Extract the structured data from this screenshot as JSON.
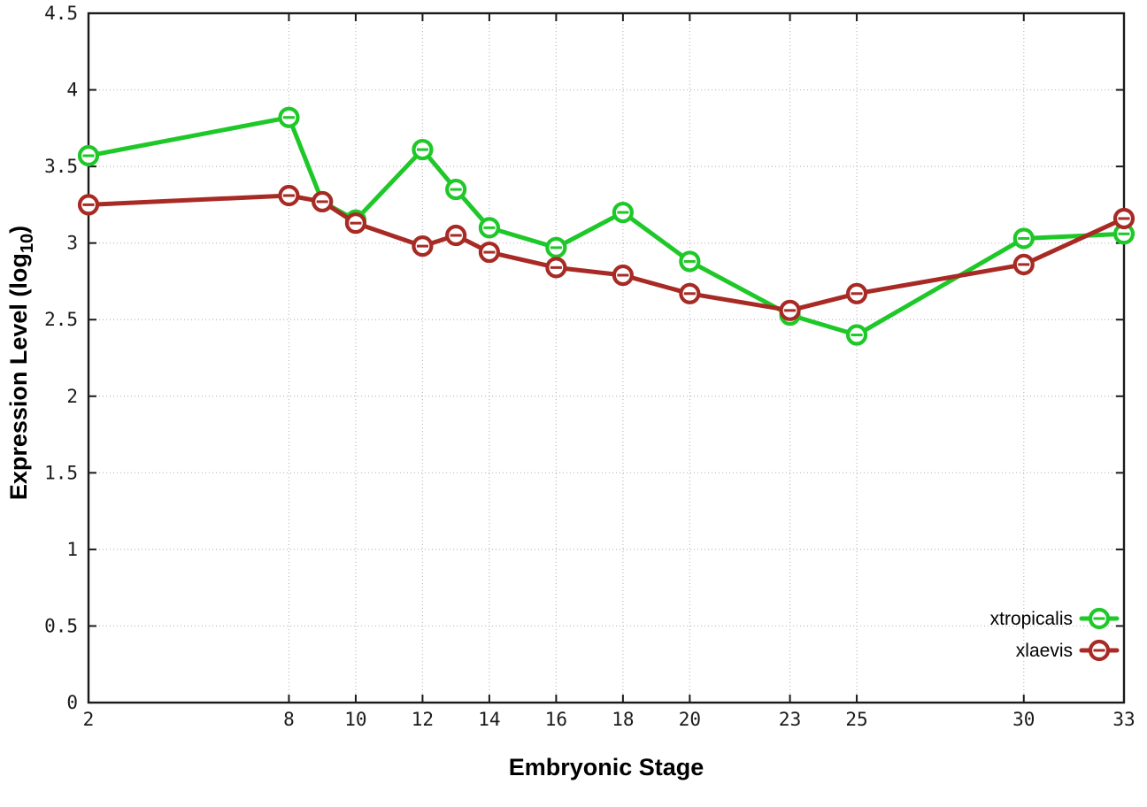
{
  "chart_data": {
    "type": "line",
    "title": "",
    "xlabel": "Embryonic Stage",
    "ylabel": {
      "text": "Expression Level (log",
      "subscript": "10",
      "suffix": ")"
    },
    "xlim": [
      2,
      33
    ],
    "ylim": [
      0,
      4.5
    ],
    "xticks": [
      2,
      8,
      10,
      12,
      14,
      16,
      18,
      20,
      23,
      25,
      30,
      33
    ],
    "xtick_labels": [
      "2",
      "8",
      "10",
      "12",
      "14",
      "16",
      "18",
      "20",
      "23",
      "25",
      "30",
      "33"
    ],
    "yticks": [
      0,
      0.5,
      1,
      1.5,
      2,
      2.5,
      3,
      3.5,
      4,
      4.5
    ],
    "ytick_labels": [
      "0",
      "0.5",
      "1",
      "1.5",
      "2",
      "2.5",
      "3",
      "3.5",
      "4",
      "4.5"
    ],
    "grid": true,
    "legend_position": "inside-bottom-right",
    "series": [
      {
        "name": "xtropicalis",
        "color": "#1EC828",
        "marker": "open-circle-errorbar",
        "x": [
          2,
          8,
          9,
          10,
          12,
          13,
          14,
          16,
          18,
          20,
          23,
          25,
          30,
          33
        ],
        "y": [
          3.57,
          3.82,
          3.27,
          3.15,
          3.61,
          3.35,
          3.1,
          2.97,
          3.2,
          2.88,
          2.53,
          2.4,
          3.03,
          3.06
        ]
      },
      {
        "name": "xlaevis",
        "color": "#A82A24",
        "marker": "open-circle-errorbar",
        "x": [
          2,
          8,
          9,
          10,
          12,
          13,
          14,
          16,
          18,
          20,
          23,
          25,
          30,
          33
        ],
        "y": [
          3.25,
          3.31,
          3.27,
          3.13,
          2.98,
          3.05,
          2.94,
          2.84,
          2.79,
          2.67,
          2.56,
          2.67,
          2.86,
          3.16
        ]
      }
    ],
    "axis_color": "#1a1a1a",
    "grid_color": "#b9b9c2",
    "background": "#ffffff"
  }
}
